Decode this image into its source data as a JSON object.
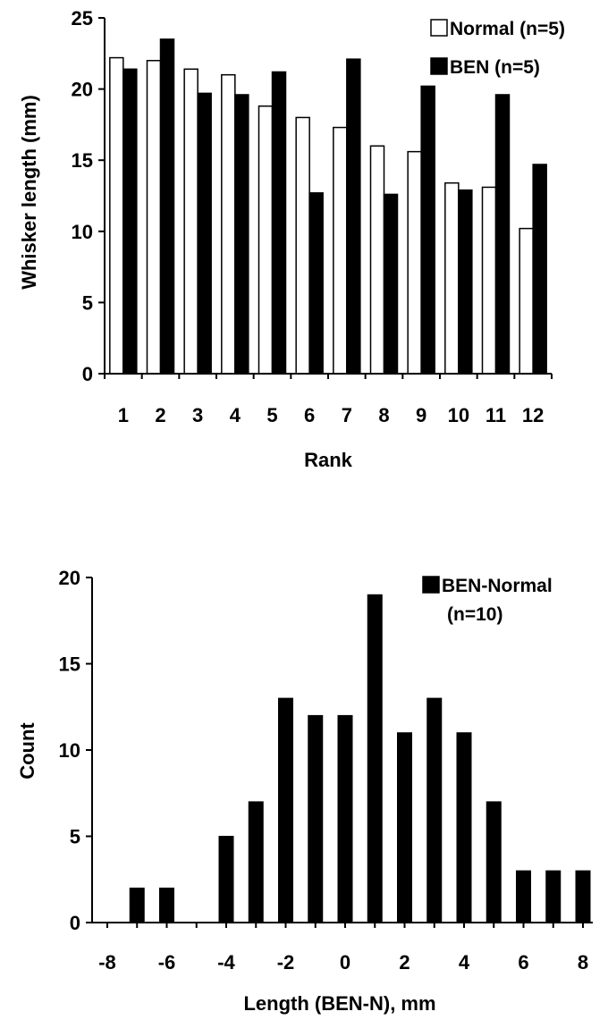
{
  "chart_data": [
    {
      "type": "bar",
      "categories": [
        "1",
        "2",
        "3",
        "4",
        "5",
        "6",
        "7",
        "8",
        "9",
        "10",
        "11",
        "12"
      ],
      "series": [
        {
          "name": "Normal (n=5)",
          "values": [
            22.2,
            22.0,
            21.4,
            21.0,
            18.8,
            18.0,
            17.3,
            16.0,
            15.6,
            13.4,
            13.1,
            10.2
          ],
          "fill": "#ffffff"
        },
        {
          "name": "BEN (n=5)",
          "values": [
            21.4,
            23.5,
            19.7,
            19.6,
            21.2,
            12.7,
            22.1,
            12.6,
            20.2,
            12.9,
            19.6,
            14.7
          ],
          "fill": "#000000"
        }
      ],
      "xlabel": "Rank",
      "ylabel": "Whisker length (mm)",
      "ylim": [
        0,
        25
      ],
      "yticks": [
        "0",
        "5",
        "10",
        "15",
        "20",
        "25"
      ],
      "grid": false,
      "legend": "top-right"
    },
    {
      "type": "bar",
      "x": [
        -7,
        -6,
        -4,
        -3,
        -2,
        -1,
        0,
        1,
        2,
        3,
        4,
        5,
        6,
        7,
        8
      ],
      "series": [
        {
          "name": "BEN-Normal",
          "values": [
            2,
            2,
            5,
            7,
            13,
            12,
            12,
            19,
            11,
            13,
            11,
            7,
            3,
            3,
            3
          ],
          "fill": "#000000"
        }
      ],
      "legend_note": "(n=10)",
      "xlabel": "Length (BEN-N), mm",
      "ylabel": "Count",
      "xlim": [
        -8,
        8
      ],
      "ylim": [
        0,
        20
      ],
      "xticks": [
        "-8",
        "-6",
        "-4",
        "-2",
        "0",
        "2",
        "4",
        "6",
        "8"
      ],
      "yticks": [
        "0",
        "5",
        "10",
        "15",
        "20"
      ],
      "grid": false,
      "legend": "top-right"
    }
  ]
}
